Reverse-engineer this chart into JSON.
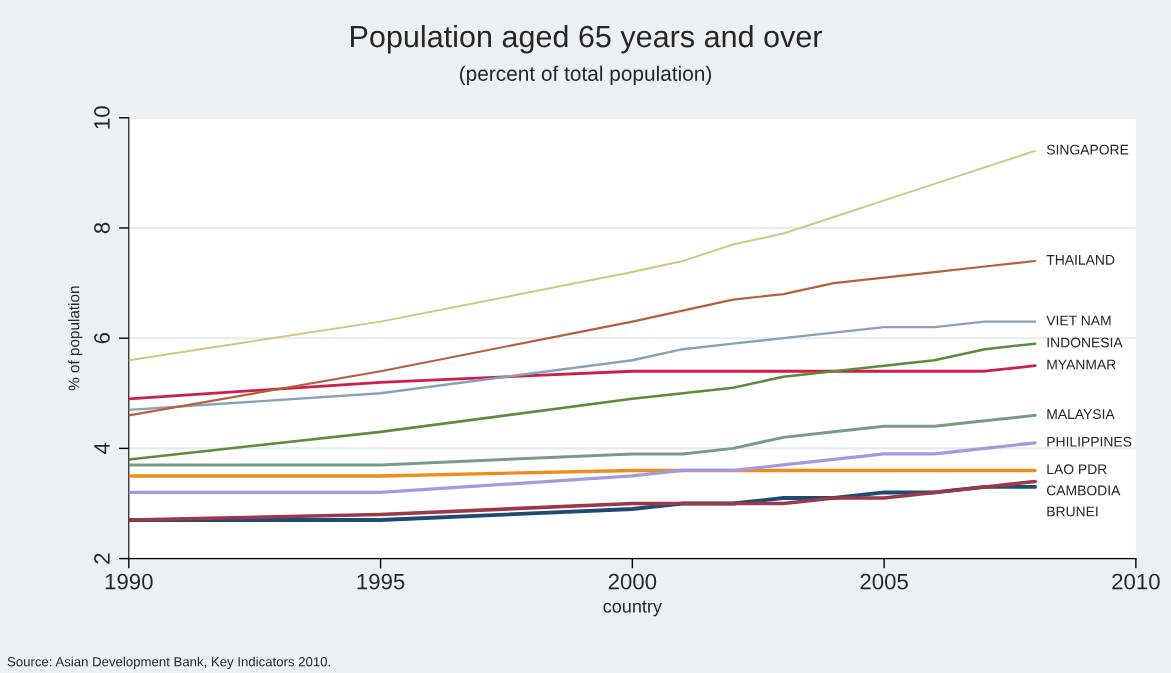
{
  "chart_data": {
    "type": "line",
    "title": "Population aged 65 years and over",
    "subtitle": "(percent of total population)",
    "xlabel": "country",
    "ylabel": "% of population",
    "annotations": [
      "Source: Asian Development Bank, Key Indicators 2010."
    ],
    "x": [
      1990,
      1995,
      2000,
      2001,
      2002,
      2003,
      2004,
      2005,
      2006,
      2007,
      2008
    ],
    "series": [
      {
        "name": "SINGAPORE",
        "color": "#d4c67e",
        "values": [
          5.6,
          6.3,
          7.2,
          7.4,
          7.7,
          7.9,
          8.2,
          8.5,
          8.8,
          9.1,
          9.4
        ]
      },
      {
        "name": "THAILAND",
        "color": "#b5603a",
        "values": [
          4.6,
          5.4,
          6.3,
          6.5,
          6.7,
          6.8,
          7.0,
          7.1,
          7.2,
          7.3,
          7.4
        ]
      },
      {
        "name": "VIET NAM",
        "color": "#8aa0b8",
        "values": [
          4.7,
          5.0,
          5.6,
          5.8,
          5.9,
          6.0,
          6.1,
          6.2,
          6.2,
          6.3,
          6.3
        ]
      },
      {
        "name": "INDONESIA",
        "color": "#5e8a3a",
        "values": [
          3.8,
          4.3,
          4.9,
          5.0,
          5.1,
          5.3,
          5.4,
          5.5,
          5.6,
          5.8,
          5.9
        ]
      },
      {
        "name": "MYANMAR",
        "color": "#d01c4a",
        "values": [
          4.9,
          5.2,
          5.4,
          5.4,
          5.4,
          5.4,
          5.4,
          5.4,
          5.4,
          5.4,
          5.5
        ]
      },
      {
        "name": "MALAYSIA",
        "color": "#7a9a88",
        "values": [
          3.7,
          3.7,
          3.9,
          3.9,
          4.0,
          4.2,
          4.3,
          4.4,
          4.4,
          4.5,
          4.6
        ]
      },
      {
        "name": "PHILIPPINES",
        "color": "#a399e0",
        "values": [
          3.2,
          3.2,
          3.5,
          3.6,
          3.6,
          3.7,
          3.8,
          3.9,
          3.9,
          4.0,
          4.1
        ]
      },
      {
        "name": "LAO PDR",
        "color": "#f08c1c",
        "values": [
          3.5,
          3.5,
          3.6,
          3.6,
          3.6,
          3.6,
          3.6,
          3.6,
          3.6,
          3.6,
          3.6
        ]
      },
      {
        "name": "CAMBODIA",
        "color": "#9c3848",
        "values": [
          2.7,
          2.8,
          3.0,
          3.0,
          3.0,
          3.0,
          3.1,
          3.1,
          3.2,
          3.3,
          3.4
        ]
      },
      {
        "name": "BRUNEI",
        "color": "#1f4a74",
        "values": [
          2.7,
          2.7,
          2.9,
          3.0,
          3.0,
          3.1,
          3.1,
          3.2,
          3.2,
          3.3,
          3.3
        ]
      }
    ],
    "xlim": [
      1990,
      2010
    ],
    "xticks": [
      1990,
      1995,
      2000,
      2005,
      2010
    ],
    "ylim": [
      2,
      10
    ],
    "yticks": [
      2,
      4,
      6,
      8,
      10
    ],
    "grid": "y",
    "marker": "none",
    "line_style": "solid"
  }
}
